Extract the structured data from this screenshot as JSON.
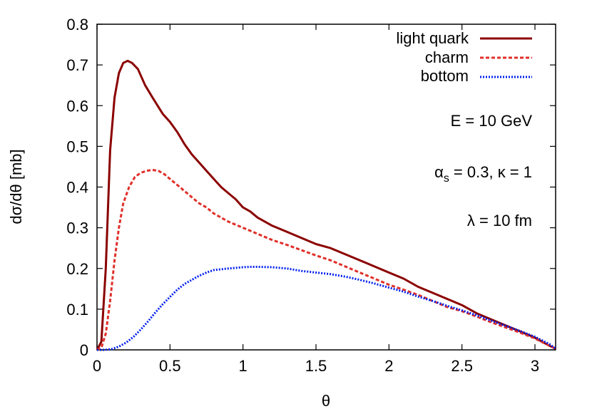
{
  "chart_data": {
    "type": "line",
    "xlabel": "θ",
    "ylabel": "dσ/dθ [mb]",
    "xlim": [
      0,
      3.1416
    ],
    "ylim": [
      0,
      0.8
    ],
    "xticks": [
      0,
      0.5,
      1,
      1.5,
      2,
      2.5,
      3
    ],
    "xtick_labels": [
      "0",
      "0.5",
      "1",
      "1.5",
      "2",
      "2.5",
      "3"
    ],
    "yticks": [
      0,
      0.1,
      0.2,
      0.3,
      0.4,
      0.5,
      0.6,
      0.7,
      0.8
    ],
    "ytick_labels": [
      "0",
      "0.1",
      "0.2",
      "0.3",
      "0.4",
      "0.5",
      "0.6",
      "0.7",
      "0.8"
    ],
    "grid": false,
    "legend_position": "top-right",
    "annotations": [
      "E = 10 GeV",
      "λ = 10 fm"
    ],
    "annotation_alpha": {
      "symbol": "α",
      "subscript": "s",
      "rest": " = 0.3, κ = 1"
    },
    "series": [
      {
        "name": "light quark",
        "color": "#8b0000",
        "style": "solid",
        "x": [
          0,
          0.03,
          0.06,
          0.09,
          0.12,
          0.15,
          0.18,
          0.21,
          0.24,
          0.28,
          0.33,
          0.38,
          0.45,
          0.5,
          0.55,
          0.6,
          0.65,
          0.7,
          0.75,
          0.8,
          0.85,
          0.9,
          0.95,
          1.0,
          1.05,
          1.1,
          1.15,
          1.2,
          1.3,
          1.4,
          1.5,
          1.6,
          1.7,
          1.8,
          1.9,
          2.0,
          2.1,
          2.2,
          2.3,
          2.4,
          2.5,
          2.6,
          2.7,
          2.8,
          2.9,
          3.0,
          3.1,
          3.1416
        ],
        "y": [
          0,
          0.02,
          0.2,
          0.49,
          0.62,
          0.68,
          0.705,
          0.71,
          0.705,
          0.69,
          0.65,
          0.62,
          0.58,
          0.56,
          0.535,
          0.505,
          0.48,
          0.46,
          0.44,
          0.42,
          0.4,
          0.385,
          0.37,
          0.35,
          0.34,
          0.325,
          0.315,
          0.305,
          0.29,
          0.275,
          0.26,
          0.25,
          0.235,
          0.22,
          0.205,
          0.19,
          0.175,
          0.155,
          0.14,
          0.125,
          0.11,
          0.09,
          0.075,
          0.06,
          0.045,
          0.03,
          0.01,
          0.003
        ]
      },
      {
        "name": "charm",
        "color": "#e0302a",
        "style": "dashed",
        "x": [
          0,
          0.03,
          0.06,
          0.09,
          0.12,
          0.15,
          0.18,
          0.22,
          0.26,
          0.3,
          0.34,
          0.38,
          0.42,
          0.46,
          0.5,
          0.55,
          0.6,
          0.65,
          0.7,
          0.75,
          0.8,
          0.85,
          0.9,
          1.0,
          1.1,
          1.2,
          1.3,
          1.4,
          1.5,
          1.6,
          1.7,
          1.8,
          1.9,
          2.0,
          2.1,
          2.2,
          2.3,
          2.4,
          2.5,
          2.6,
          2.7,
          2.8,
          2.9,
          3.0,
          3.1,
          3.1416
        ],
        "y": [
          0,
          0.005,
          0.04,
          0.12,
          0.22,
          0.3,
          0.36,
          0.4,
          0.425,
          0.435,
          0.44,
          0.442,
          0.44,
          0.432,
          0.42,
          0.405,
          0.39,
          0.375,
          0.36,
          0.35,
          0.335,
          0.325,
          0.315,
          0.3,
          0.285,
          0.27,
          0.258,
          0.245,
          0.232,
          0.22,
          0.205,
          0.19,
          0.175,
          0.16,
          0.148,
          0.135,
          0.12,
          0.105,
          0.095,
          0.082,
          0.068,
          0.055,
          0.042,
          0.028,
          0.01,
          0.003
        ]
      },
      {
        "name": "bottom",
        "color": "#0020ee",
        "style": "dotted",
        "x": [
          0,
          0.05,
          0.1,
          0.15,
          0.2,
          0.25,
          0.3,
          0.35,
          0.4,
          0.45,
          0.5,
          0.55,
          0.6,
          0.65,
          0.7,
          0.75,
          0.8,
          0.9,
          1.0,
          1.05,
          1.1,
          1.2,
          1.3,
          1.4,
          1.5,
          1.6,
          1.7,
          1.8,
          1.9,
          2.0,
          2.1,
          2.2,
          2.3,
          2.4,
          2.5,
          2.6,
          2.7,
          2.8,
          2.9,
          3.0,
          3.1,
          3.1416
        ],
        "y": [
          0,
          0.0,
          0.002,
          0.008,
          0.018,
          0.032,
          0.05,
          0.07,
          0.092,
          0.112,
          0.13,
          0.148,
          0.162,
          0.172,
          0.182,
          0.19,
          0.196,
          0.2,
          0.203,
          0.204,
          0.204,
          0.203,
          0.2,
          0.194,
          0.19,
          0.186,
          0.18,
          0.172,
          0.163,
          0.153,
          0.143,
          0.131,
          0.12,
          0.108,
          0.097,
          0.085,
          0.072,
          0.059,
          0.046,
          0.032,
          0.014,
          0.003
        ]
      }
    ]
  }
}
